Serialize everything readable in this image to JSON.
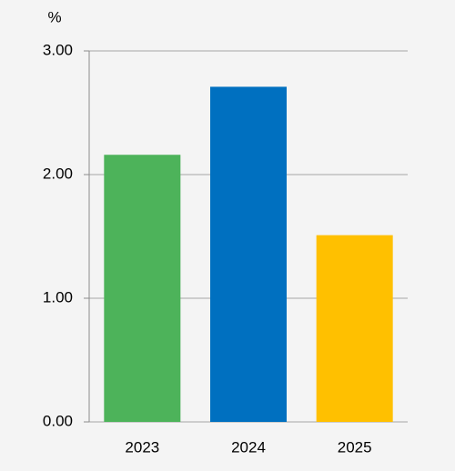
{
  "chart_data": {
    "type": "bar",
    "y_label": "%",
    "categories": [
      "2023",
      "2024",
      "2025"
    ],
    "values": [
      2.16,
      2.71,
      1.51
    ],
    "colors": [
      "#4db35a",
      "#0070c0",
      "#ffc000"
    ],
    "ylim": [
      0,
      3
    ],
    "yticks": [
      {
        "value": 0,
        "label": "0.00"
      },
      {
        "value": 1,
        "label": "1.00"
      },
      {
        "value": 2,
        "label": "2.00"
      },
      {
        "value": 3,
        "label": "3.00"
      }
    ],
    "grid": true
  }
}
